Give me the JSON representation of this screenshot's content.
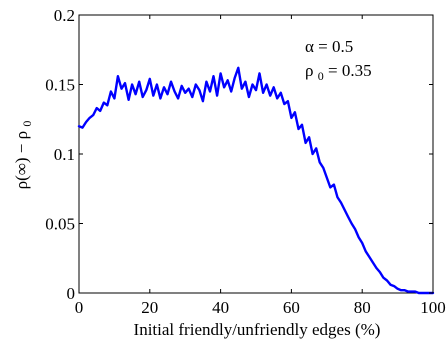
{
  "chart_data": {
    "type": "line",
    "xlabel": "Initial friendly/unfriendly edges (%)",
    "ylabel": "ρ(∞) − ρ",
    "ylabel_subscript": "0",
    "xlim": [
      0,
      100
    ],
    "ylim": [
      0,
      0.2
    ],
    "x_ticks": [
      0,
      20,
      40,
      60,
      80,
      100
    ],
    "x_tick_labels": [
      "0",
      "20",
      "40",
      "60",
      "80",
      "100"
    ],
    "y_ticks": [
      0,
      0.05,
      0.1,
      0.15,
      0.2
    ],
    "y_tick_labels": [
      "0",
      "0.05",
      "0.1",
      "0.15",
      "0.2"
    ],
    "grid": false,
    "annotations": [
      {
        "text": "α = 0.5"
      },
      {
        "text": "ρ",
        "subscript": "0",
        "suffix": "= 0.35"
      }
    ],
    "series": [
      {
        "color": "#0000ff",
        "x": [
          0,
          1,
          2,
          3,
          4,
          5,
          6,
          7,
          8,
          9,
          10,
          11,
          12,
          13,
          14,
          15,
          16,
          17,
          18,
          19,
          20,
          21,
          22,
          23,
          24,
          25,
          26,
          27,
          28,
          29,
          30,
          31,
          32,
          33,
          34,
          35,
          36,
          37,
          38,
          39,
          40,
          41,
          42,
          43,
          44,
          45,
          46,
          47,
          48,
          49,
          50,
          51,
          52,
          53,
          54,
          55,
          56,
          57,
          58,
          59,
          60,
          61,
          62,
          63,
          64,
          65,
          66,
          67,
          68,
          69,
          70,
          71,
          72,
          73,
          74,
          75,
          76,
          77,
          78,
          79,
          80,
          81,
          82,
          83,
          84,
          85,
          86,
          87,
          88,
          89,
          90,
          91,
          92,
          93,
          94,
          95,
          96,
          97,
          98,
          99,
          100
        ],
        "values": [
          0.12,
          0.119,
          0.123,
          0.126,
          0.128,
          0.133,
          0.131,
          0.137,
          0.135,
          0.145,
          0.14,
          0.156,
          0.147,
          0.151,
          0.139,
          0.15,
          0.143,
          0.152,
          0.141,
          0.146,
          0.154,
          0.142,
          0.15,
          0.14,
          0.148,
          0.143,
          0.152,
          0.145,
          0.14,
          0.149,
          0.144,
          0.147,
          0.141,
          0.15,
          0.146,
          0.138,
          0.152,
          0.145,
          0.156,
          0.142,
          0.158,
          0.148,
          0.153,
          0.145,
          0.155,
          0.162,
          0.147,
          0.152,
          0.141,
          0.15,
          0.146,
          0.158,
          0.144,
          0.15,
          0.142,
          0.148,
          0.14,
          0.144,
          0.136,
          0.138,
          0.126,
          0.13,
          0.118,
          0.121,
          0.108,
          0.112,
          0.1,
          0.104,
          0.094,
          0.09,
          0.083,
          0.076,
          0.078,
          0.069,
          0.065,
          0.06,
          0.055,
          0.05,
          0.046,
          0.04,
          0.036,
          0.03,
          0.026,
          0.022,
          0.018,
          0.015,
          0.011,
          0.009,
          0.006,
          0.005,
          0.003,
          0.002,
          0.002,
          0.001,
          0.001,
          0.001,
          0.0,
          0.0,
          0.0,
          0.0,
          0.0
        ]
      }
    ]
  }
}
